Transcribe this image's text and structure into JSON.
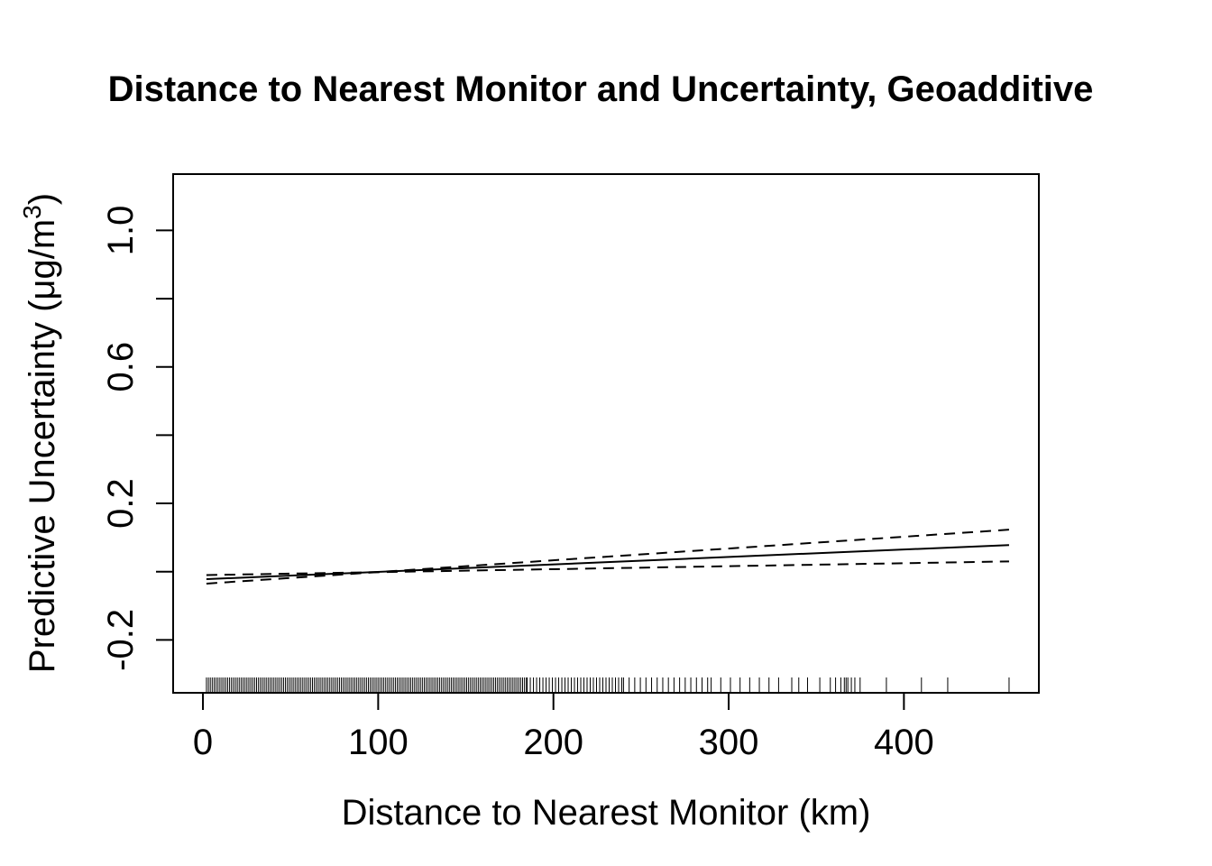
{
  "chart_data": {
    "type": "line",
    "title": "Distance to Nearest Monitor and Uncertainty, Geoadditive",
    "xlabel": "Distance to Nearest Monitor (km)",
    "ylabel": "Predictive Uncertainty (",
    "ylabel_unit": "μg/m",
    "ylabel_sup": "3",
    "ylabel_close": ")",
    "xlim": [
      -17,
      477
    ],
    "ylim": [
      -0.355,
      1.165
    ],
    "x_ticks": [
      0,
      100,
      200,
      300,
      400
    ],
    "x_tick_labels": [
      "0",
      "100",
      "200",
      "300",
      "400"
    ],
    "y_ticks": [
      -0.2,
      0.0,
      0.2,
      0.4,
      0.6,
      0.8,
      1.0
    ],
    "y_tick_labels": [
      "-0.2",
      "",
      "0.2",
      "",
      "0.6",
      "",
      "1.0"
    ],
    "grid": false,
    "series": [
      {
        "line_style": "solid",
        "x": [
          2,
          460
        ],
        "y": [
          -0.022,
          0.078
        ]
      },
      {
        "line_style": "dashed",
        "x": [
          2,
          460
        ],
        "y": [
          -0.035,
          0.123
        ]
      },
      {
        "line_style": "dashed",
        "x": [
          2,
          460
        ],
        "y": [
          -0.01,
          0.03
        ]
      }
    ],
    "rug": {
      "dense_ranges": [
        [
          2,
          185,
          1.1
        ],
        [
          185,
          240,
          1.8
        ],
        [
          240,
          290,
          3.2
        ],
        [
          290,
          330,
          5.5
        ]
      ],
      "sparse": [
        336,
        340,
        345,
        352,
        358,
        361,
        364,
        366,
        367,
        368,
        370,
        372,
        375,
        390,
        410,
        425,
        460
      ]
    }
  }
}
